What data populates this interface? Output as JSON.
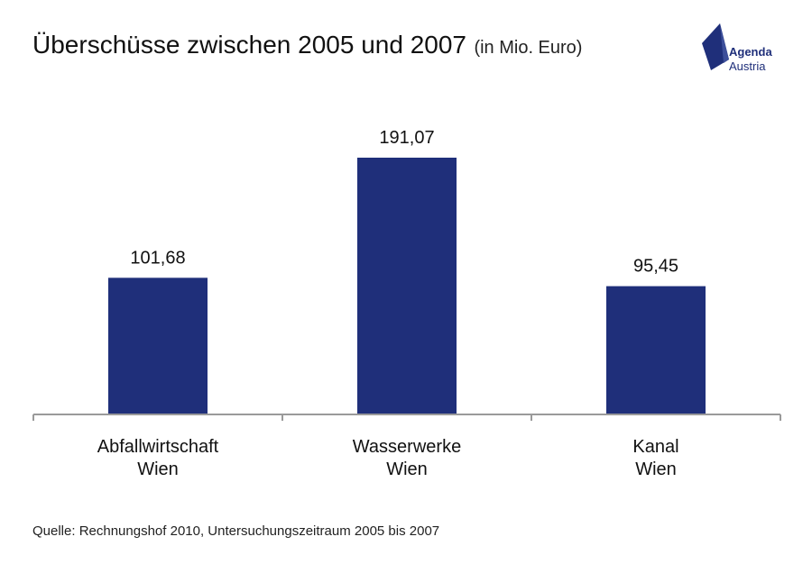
{
  "title": "Überschüsse zwischen 2005 und 2007",
  "subtitle": "(in Mio. Euro)",
  "logo": {
    "line1": "Agenda",
    "line2": "Austria",
    "color": "#1f2f7a"
  },
  "source": "Quelle: Rechnungshof 2010, Untersuchungszeitraum 2005 bis 2007",
  "chart_data": {
    "type": "bar",
    "categories": [
      [
        "Abfallwirtschaft",
        "Wien"
      ],
      [
        "Wasserwerke",
        "Wien"
      ],
      [
        "Kanal",
        "Wien"
      ]
    ],
    "values": [
      101.68,
      191.07,
      95.45
    ],
    "value_labels": [
      "101,68",
      "191,07",
      "95,45"
    ],
    "ylim": [
      0,
      191.07
    ],
    "bar_color": "#1f2f7a",
    "axis_color": "#9a9a9a",
    "grid": false,
    "legend": "none"
  }
}
